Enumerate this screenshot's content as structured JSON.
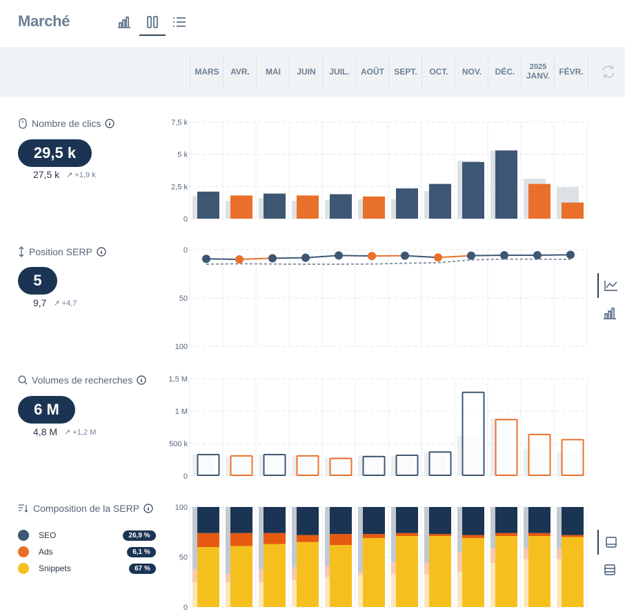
{
  "title": "Marché",
  "toolbar": {
    "views": [
      "bar-chart-icon",
      "columns-icon",
      "list-icon"
    ],
    "active": 1
  },
  "months": [
    {
      "year": "",
      "label": "MARS"
    },
    {
      "year": "",
      "label": "AVR."
    },
    {
      "year": "",
      "label": "MAI"
    },
    {
      "year": "",
      "label": "JUIN"
    },
    {
      "year": "",
      "label": "JUIL."
    },
    {
      "year": "",
      "label": "AOÛT"
    },
    {
      "year": "",
      "label": "SEPT."
    },
    {
      "year": "",
      "label": "OCT."
    },
    {
      "year": "",
      "label": "NOV."
    },
    {
      "year": "",
      "label": "DÉC."
    },
    {
      "year": "2025",
      "label": "JANV."
    },
    {
      "year": "",
      "label": "FÉVR."
    }
  ],
  "colors": {
    "navy": "#3d5673",
    "orange": "#e8702a",
    "grey": "#dde1e5",
    "yellow": "#f5c01e",
    "dark": "#1b3453",
    "red": "#e55a10"
  },
  "metrics": {
    "clicks": {
      "label": "Nombre de clics",
      "value": "29,5 k",
      "previous": "27,5 k",
      "delta": "+1,9 k"
    },
    "position": {
      "label": "Position SERP",
      "value": "5",
      "previous": "9,7",
      "delta": "+4,7"
    },
    "volume": {
      "label": "Volumes de recherches",
      "value": "6 M",
      "previous": "4,8 M",
      "delta": "+1,2 M"
    },
    "composition": {
      "label": "Composition de la SERP",
      "legend": [
        {
          "name": "SEO",
          "color": "#3d5673",
          "value": "26,9 %"
        },
        {
          "name": "Ads",
          "color": "#e8702a",
          "value": "6,1 %"
        },
        {
          "name": "Snippets",
          "color": "#f5c01e",
          "value": "67 %"
        }
      ]
    }
  },
  "chart_data": [
    {
      "type": "bar",
      "categories": [
        "MARS",
        "AVR.",
        "MAI",
        "JUIN",
        "JUIL.",
        "AOÛT",
        "SEPT.",
        "OCT.",
        "NOV.",
        "DÉC.",
        "JANV.",
        "FÉVR."
      ],
      "series": [
        {
          "values": [
            2100,
            1800,
            1950,
            1800,
            1900,
            1720,
            2350,
            2700,
            4400,
            5300,
            2700,
            1250
          ]
        },
        {
          "values": [
            1750,
            1400,
            1600,
            1400,
            1450,
            1500,
            1500,
            2150,
            4500,
            5300,
            3100,
            2450
          ]
        }
      ],
      "highlight": [
        "navy",
        "orange",
        "navy",
        "orange",
        "navy",
        "orange",
        "navy",
        "navy",
        "navy",
        "navy",
        "orange",
        "orange"
      ],
      "yticks": [
        "0",
        "2,5 k",
        "5 k",
        "7,5 k"
      ],
      "ylim": [
        0,
        7500
      ]
    },
    {
      "type": "line",
      "categories": [
        "MARS",
        "AVR.",
        "MAI",
        "JUIN",
        "JUIL.",
        "AOÛT",
        "SEPT.",
        "OCT.",
        "NOV.",
        "DÉC.",
        "JANV.",
        "FÉVR."
      ],
      "series": [
        {
          "values": [
            9.5,
            10,
            8.8,
            8.3,
            6,
            6.5,
            6.2,
            8,
            6.2,
            5.7,
            5.7,
            5.3
          ]
        },
        {
          "values": [
            15,
            14.5,
            14.8,
            15,
            15,
            14.8,
            14,
            13.5,
            10.5,
            9.8,
            9.8,
            10
          ]
        }
      ],
      "highlight": [
        "navy",
        "orange",
        "navy",
        "navy",
        "navy",
        "orange",
        "navy",
        "orange",
        "navy",
        "navy",
        "navy",
        "navy"
      ],
      "yticks": [
        "0",
        "50",
        "100"
      ],
      "ylim": [
        0,
        100
      ],
      "inverted": true
    },
    {
      "type": "bar",
      "categories": [
        "MARS",
        "AVR.",
        "MAI",
        "JUIN",
        "JUIL.",
        "AOÛT",
        "SEPT.",
        "OCT.",
        "NOV.",
        "DÉC.",
        "JANV.",
        "FÉVR."
      ],
      "series": [
        {
          "values": [
            340000,
            320000,
            340000,
            320000,
            280000,
            310000,
            330000,
            380000,
            1300000,
            880000,
            650000,
            570000
          ]
        },
        {
          "values": [
            330000,
            300000,
            330000,
            300000,
            290000,
            320000,
            310000,
            370000,
            620000,
            890000,
            420000,
            360000
          ]
        }
      ],
      "highlight": [
        "navy",
        "orange",
        "navy",
        "orange",
        "orange",
        "navy",
        "navy",
        "navy",
        "navy",
        "orange",
        "orange",
        "orange"
      ],
      "yticks": [
        "0",
        "500 k",
        "1 M",
        "1,5 M"
      ],
      "ylim": [
        0,
        1500000
      ]
    },
    {
      "type": "bar",
      "stacked": true,
      "categories": [
        "MARS",
        "AVR.",
        "MAI",
        "JUIN",
        "JUIL.",
        "AOÛT",
        "SEPT.",
        "OCT.",
        "NOV.",
        "DÉC.",
        "JANV.",
        "FÉVR."
      ],
      "series": [
        {
          "name": "Snippets",
          "values": [
            60,
            61,
            63,
            65,
            62,
            69,
            71,
            71,
            69,
            71,
            71,
            70
          ]
        },
        {
          "name": "Ads",
          "values": [
            14,
            13,
            11,
            7,
            11,
            4,
            3,
            2,
            3,
            3,
            3,
            2
          ]
        },
        {
          "name": "SEO",
          "values": [
            26,
            26,
            26,
            28,
            27,
            27,
            26,
            27,
            28,
            26,
            26,
            28
          ]
        }
      ],
      "previous": [
        {
          "values": [
            25,
            25,
            25,
            27,
            30,
            32,
            33,
            33,
            35,
            44,
            48,
            48
          ]
        },
        {
          "values": [
            13,
            8,
            13,
            13,
            11,
            3,
            12,
            11,
            20,
            15,
            11,
            10
          ]
        },
        {
          "values": [
            62,
            67,
            62,
            60,
            59,
            65,
            55,
            56,
            45,
            41,
            41,
            42
          ]
        }
      ],
      "yticks": [
        "0",
        "50",
        "100"
      ],
      "ylim": [
        0,
        100
      ]
    }
  ]
}
